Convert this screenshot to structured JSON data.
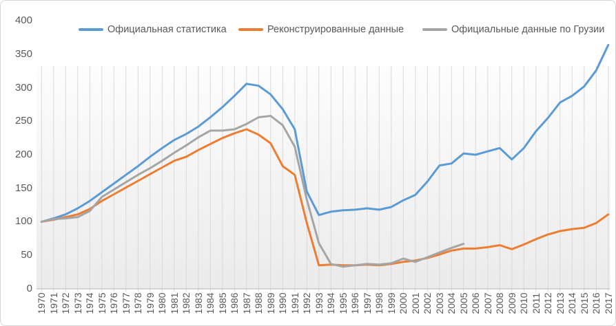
{
  "chart_data": {
    "type": "line",
    "x": [
      1970,
      1971,
      1972,
      1973,
      1974,
      1975,
      1976,
      1977,
      1978,
      1979,
      1980,
      1981,
      1982,
      1983,
      1984,
      1985,
      1986,
      1987,
      1988,
      1989,
      1990,
      1991,
      1992,
      1993,
      1994,
      1995,
      1996,
      1997,
      1998,
      1999,
      2000,
      2001,
      2002,
      2003,
      2004,
      2005,
      2006,
      2007,
      2008,
      2009,
      2010,
      2011,
      2012,
      2013,
      2014,
      2015,
      2016,
      2017
    ],
    "series": [
      {
        "name": "Официальная статистика",
        "color": "#5B9BD5",
        "values": [
          100,
          105,
          111,
          120,
          131,
          144,
          157,
          170,
          183,
          197,
          210,
          222,
          231,
          242,
          256,
          271,
          288,
          306,
          303,
          290,
          268,
          238,
          145,
          110,
          115,
          117,
          118,
          120,
          118,
          122,
          132,
          140,
          160,
          184,
          187,
          202,
          200,
          205,
          210,
          193,
          210,
          235,
          255,
          278,
          288,
          302,
          326,
          364
        ]
      },
      {
        "name": "Реконструированные данные",
        "color": "#ED7D31",
        "values": [
          100,
          103,
          107,
          111,
          119,
          131,
          141,
          151,
          161,
          171,
          181,
          191,
          197,
          207,
          216,
          225,
          232,
          238,
          230,
          217,
          183,
          170,
          98,
          35,
          36,
          35,
          35,
          36,
          35,
          37,
          40,
          42,
          46,
          51,
          57,
          60,
          60,
          62,
          65,
          59,
          66,
          74,
          81,
          86,
          89,
          91,
          98,
          111
        ]
      },
      {
        "name": "Официальные данные по Грузии",
        "color": "#A5A5A5",
        "values": [
          100,
          104,
          105,
          107,
          116,
          137,
          148,
          159,
          170,
          180,
          191,
          203,
          214,
          226,
          236,
          236,
          238,
          246,
          256,
          258,
          244,
          212,
          133,
          68,
          37,
          33,
          35,
          37,
          36,
          38,
          45,
          40,
          47,
          54,
          61,
          67
        ]
      }
    ],
    "ylim": [
      0,
      400
    ],
    "y_ticks": [
      0,
      50,
      100,
      150,
      200,
      250,
      300,
      350,
      400
    ],
    "x_tick_labels": [
      "1970",
      "1971",
      "1972",
      "1973",
      "1974",
      "1975",
      "1976",
      "1977",
      "1978",
      "1979",
      "1980",
      "1981",
      "1982",
      "1983",
      "1984",
      "1985",
      "1986",
      "1987",
      "1988",
      "1989",
      "1990",
      "1991",
      "1992",
      "1993",
      "1994",
      "1995",
      "1996",
      "1997",
      "1998",
      "1999",
      "2000",
      "2001",
      "2002",
      "2003",
      "2004",
      "2005",
      "2006",
      "2007",
      "2008",
      "2009",
      "2010",
      "2011",
      "2012",
      "2013",
      "2014",
      "2015",
      "2016",
      "2017"
    ],
    "title": "",
    "xlabel": "",
    "ylabel": "",
    "grid": "vertical-only",
    "legend_position": "top",
    "colors": {
      "grid_line": "#D9D9D9",
      "axis_line": "#BFBFBF",
      "tick_text": "#595959",
      "plot_fill_top": "#FDFDFD",
      "plot_fill_bottom": "#EBEBEB"
    }
  }
}
